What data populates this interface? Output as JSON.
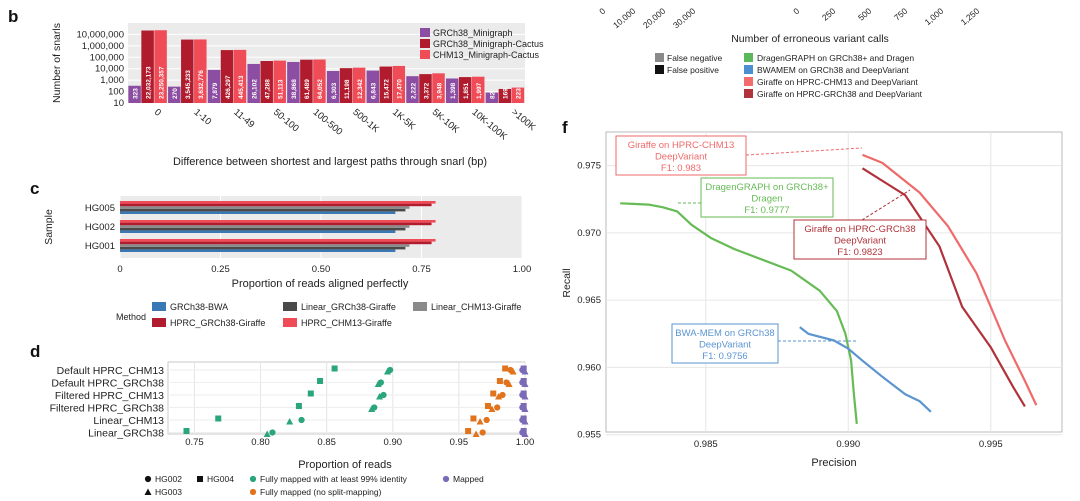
{
  "panels": {
    "b": "b",
    "c": "c",
    "d": "d",
    "f": "f"
  },
  "chart_data": [
    {
      "id": "b",
      "type": "bar",
      "scale": "log",
      "ylabel": "Number of snarls",
      "xlabel": "Difference between shortest and largest paths through snarl (bp)",
      "yticks": [
        "10,000,000",
        "1,000,000",
        "100,000",
        "10,000",
        "1,000",
        "100",
        "10"
      ],
      "ytick_values": [
        10000000,
        1000000,
        100000,
        10000,
        1000,
        100,
        10
      ],
      "categories": [
        "0",
        "1-10",
        "11-49",
        "50-100",
        "100-500",
        "500-1K",
        "1K-5K",
        "5K-10K",
        "10K-100K",
        ">100K"
      ],
      "series": [
        {
          "name": "GRCh38_Minigraph",
          "color": "#8c4ea3",
          "values": [
            323,
            270,
            7879,
            26102,
            38868,
            6303,
            6843,
            2222,
            1398,
            82
          ],
          "labels": [
            "323",
            "270",
            "7,879",
            "26,102",
            "38,868",
            "6,303",
            "6,843",
            "2,222",
            "1,398",
            "82"
          ]
        },
        {
          "name": "GRCh38_Minigraph-Cactus",
          "color": "#b01c2e",
          "values": [
            22032173,
            3545233,
            426297,
            47288,
            61489,
            11198,
            15472,
            3372,
            1851,
            169
          ],
          "labels": [
            "22,032,173",
            "3,545,233",
            "426,297",
            "47,288",
            "61,489",
            "11,198",
            "15,472",
            "3,372",
            "1,851",
            "169"
          ]
        },
        {
          "name": "CHM13_Minigraph-Cactus",
          "color": "#f04c58",
          "values": [
            23250357,
            3632776,
            445413,
            51113,
            64052,
            12342,
            17470,
            3948,
            1997,
            223
          ],
          "labels": [
            "23,250,357",
            "3,632,776",
            "445,413",
            "51,113",
            "64,052",
            "12,342",
            "17,470",
            "3,948",
            "1,997",
            "223"
          ]
        }
      ]
    },
    {
      "id": "c",
      "type": "bar",
      "orientation": "horizontal",
      "ylabel": "Sample",
      "xlabel": "Proportion of reads aligned perfectly",
      "xlim": [
        0,
        1
      ],
      "xticks": [
        "0",
        "0.25",
        "0.50",
        "0.75",
        "1.00"
      ],
      "categories": [
        "HG005",
        "HG002",
        "HG001"
      ],
      "legend_title": "Method",
      "series": [
        {
          "name": "GRCh38-BWA",
          "color": "#3a78b5",
          "values": [
            0.685,
            0.685,
            0.685
          ]
        },
        {
          "name": "HPRC_GRCh38-Giraffe",
          "color": "#b01c2e",
          "values": [
            0.775,
            0.775,
            0.775
          ]
        },
        {
          "name": "Linear_GRCh38-Giraffe",
          "color": "#4a4a4a",
          "values": [
            0.71,
            0.71,
            0.71
          ]
        },
        {
          "name": "HPRC_CHM13-Giraffe",
          "color": "#f04c58",
          "values": [
            0.785,
            0.785,
            0.785
          ]
        },
        {
          "name": "Linear_CHM13-Giraffe",
          "color": "#8a8a8a",
          "values": [
            0.72,
            0.72,
            0.72
          ]
        }
      ]
    },
    {
      "id": "d",
      "type": "scatter",
      "xlabel": "Proportion of reads",
      "xlim": [
        0.73,
        1.0
      ],
      "xticks": [
        "0.75",
        "0.80",
        "0.85",
        "0.90",
        "0.95",
        "1.00"
      ],
      "xtick_values": [
        0.75,
        0.8,
        0.85,
        0.9,
        0.95,
        1.0
      ],
      "categories": [
        "Default HPRC_CHM13",
        "Default HPRC_GRCh38",
        "Filtered HPRC_CHM13",
        "Filtered HPRC_GRCh38",
        "Linear_CHM13",
        "Linear_GRCh38"
      ],
      "legend": {
        "samples": [
          "HG002",
          "HG003",
          "HG004"
        ],
        "metrics": [
          "Fully mapped with at least 99% identity",
          "Fully mapped (no split-mapping)",
          "Mapped"
        ],
        "metric_colors": [
          "#2aa57c",
          "#e0731c",
          "#7a6ab7"
        ]
      },
      "series": [
        {
          "name": "Fully mapped with at least 99% identity",
          "color": "#2aa57c",
          "points": [
            [
              0.856,
              0,
              "s"
            ],
            [
              0.898,
              0,
              "c"
            ],
            [
              0.896,
              0,
              "t"
            ],
            [
              0.845,
              1,
              "s"
            ],
            [
              0.891,
              1,
              "c"
            ],
            [
              0.889,
              1,
              "t"
            ],
            [
              0.838,
              2,
              "s"
            ],
            [
              0.893,
              2,
              "c"
            ],
            [
              0.89,
              2,
              "t"
            ],
            [
              0.829,
              3,
              "s"
            ],
            [
              0.886,
              3,
              "c"
            ],
            [
              0.884,
              3,
              "t"
            ],
            [
              0.768,
              4,
              "s"
            ],
            [
              0.831,
              4,
              "c"
            ],
            [
              0.822,
              4,
              "t"
            ],
            [
              0.744,
              5,
              "s"
            ],
            [
              0.809,
              5,
              "c"
            ],
            [
              0.805,
              5,
              "t"
            ]
          ]
        },
        {
          "name": "Fully mapped (no split-mapping)",
          "color": "#e0731c",
          "points": [
            [
              0.985,
              0,
              "s"
            ],
            [
              0.989,
              0,
              "c"
            ],
            [
              0.991,
              0,
              "t"
            ],
            [
              0.981,
              1,
              "s"
            ],
            [
              0.986,
              1,
              "c"
            ],
            [
              0.988,
              1,
              "t"
            ],
            [
              0.976,
              2,
              "s"
            ],
            [
              0.983,
              2,
              "c"
            ],
            [
              0.98,
              2,
              "t"
            ],
            [
              0.972,
              3,
              "s"
            ],
            [
              0.979,
              3,
              "c"
            ],
            [
              0.975,
              3,
              "t"
            ],
            [
              0.961,
              4,
              "s"
            ],
            [
              0.971,
              4,
              "c"
            ],
            [
              0.966,
              4,
              "t"
            ],
            [
              0.957,
              5,
              "s"
            ],
            [
              0.968,
              5,
              "c"
            ],
            [
              0.963,
              5,
              "t"
            ]
          ]
        },
        {
          "name": "Mapped",
          "color": "#7a6ab7",
          "points": [
            [
              0.998,
              0,
              "c"
            ],
            [
              0.999,
              0,
              "s"
            ],
            [
              1.0,
              0,
              "t"
            ],
            [
              0.998,
              1,
              "c"
            ],
            [
              0.999,
              1,
              "s"
            ],
            [
              1.0,
              1,
              "t"
            ],
            [
              0.998,
              2,
              "c"
            ],
            [
              0.999,
              2,
              "s"
            ],
            [
              1.0,
              2,
              "t"
            ],
            [
              0.998,
              3,
              "c"
            ],
            [
              0.999,
              3,
              "s"
            ],
            [
              1.0,
              3,
              "t"
            ],
            [
              0.998,
              4,
              "c"
            ],
            [
              0.999,
              4,
              "s"
            ],
            [
              1.0,
              4,
              "t"
            ],
            [
              0.998,
              5,
              "c"
            ],
            [
              0.999,
              5,
              "s"
            ],
            [
              1.0,
              5,
              "t"
            ]
          ]
        }
      ]
    },
    {
      "id": "e",
      "type": "legend",
      "xlabel": "Number of erroneous variant calls",
      "xticks": [
        "0",
        "10,000",
        "20,000",
        "30,000",
        "0",
        "250",
        "500",
        "750",
        "1,000",
        "1,250"
      ],
      "error_types": [
        {
          "name": "False negative",
          "color": "#8a8a8a"
        },
        {
          "name": "False positive",
          "color": "#111111"
        }
      ],
      "methods": [
        {
          "name": "DragenGRAPH on GRCh38+ and Dragen",
          "color": "#5cb85c"
        },
        {
          "name": "BWAMEM on GRCh38 and DeepVariant",
          "color": "#4a8fd0"
        },
        {
          "name": "Giraffe on HPRC-CHM13 and DeepVariant",
          "color": "#f26d6d"
        },
        {
          "name": "Giraffe on HPRC-GRCh38 and DeepVariant",
          "color": "#b0323a"
        }
      ]
    },
    {
      "id": "f",
      "type": "line",
      "xlabel": "Precision",
      "ylabel": "Recall",
      "xlim": [
        0.9815,
        0.9975
      ],
      "ylim": [
        0.9552,
        0.9775
      ],
      "xticks": [
        "0.985",
        "0.990",
        "0.995"
      ],
      "xtick_values": [
        0.985,
        0.99,
        0.995
      ],
      "yticks": [
        "0.975",
        "0.970",
        "0.965",
        "0.960",
        "0.955"
      ],
      "ytick_values": [
        0.975,
        0.97,
        0.965,
        0.96,
        0.955
      ],
      "series": [
        {
          "name": "DragenGRAPH on GRCh38+",
          "color": "#66bb55",
          "x": [
            0.982,
            0.983,
            0.9835,
            0.984,
            0.9845,
            0.9852,
            0.986,
            0.987,
            0.988,
            0.989,
            0.9896,
            0.9899,
            0.9901,
            0.9902,
            0.9903
          ],
          "y": [
            0.9722,
            0.9721,
            0.9719,
            0.9716,
            0.9706,
            0.9696,
            0.9688,
            0.968,
            0.9672,
            0.9657,
            0.9642,
            0.9625,
            0.9605,
            0.958,
            0.9558
          ]
        },
        {
          "name": "BWA-MEM on GRCh38",
          "color": "#5a95cf",
          "x": [
            0.9883,
            0.9886,
            0.9895,
            0.99,
            0.9905,
            0.9912,
            0.992,
            0.9925,
            0.9929
          ],
          "y": [
            0.963,
            0.9625,
            0.962,
            0.9614,
            0.9605,
            0.9593,
            0.958,
            0.9575,
            0.9567
          ]
        },
        {
          "name": "Giraffe on HPRC-CHM13",
          "color": "#ef6a6a",
          "x": [
            0.9905,
            0.9912,
            0.9925,
            0.9935,
            0.9945,
            0.9955,
            0.9962,
            0.9966
          ],
          "y": [
            0.9758,
            0.9752,
            0.973,
            0.9705,
            0.967,
            0.962,
            0.959,
            0.9572
          ]
        },
        {
          "name": "Giraffe on HPRC-GRCh38",
          "color": "#b0323a",
          "x": [
            0.9905,
            0.992,
            0.9932,
            0.994,
            0.995,
            0.9958,
            0.9962
          ],
          "y": [
            0.9748,
            0.9728,
            0.969,
            0.9645,
            0.9615,
            0.9585,
            0.9571
          ]
        }
      ],
      "annotations": [
        {
          "lines": [
            "Giraffe on HPRC-CHM13",
            "DeepVariant",
            "F1: 0.983"
          ],
          "color": "#ef6a6a"
        },
        {
          "lines": [
            "DragenGRAPH on GRCh38+",
            "Dragen",
            "F1: 0.9777"
          ],
          "color": "#66bb55"
        },
        {
          "lines": [
            "Giraffe on HPRC-GRCh38",
            "DeepVariant",
            "F1: 0.9823"
          ],
          "color": "#b0323a"
        },
        {
          "lines": [
            "BWA-MEM on GRCh38",
            "DeepVariant",
            "F1: 0.9756"
          ],
          "color": "#5a95cf"
        }
      ]
    }
  ]
}
